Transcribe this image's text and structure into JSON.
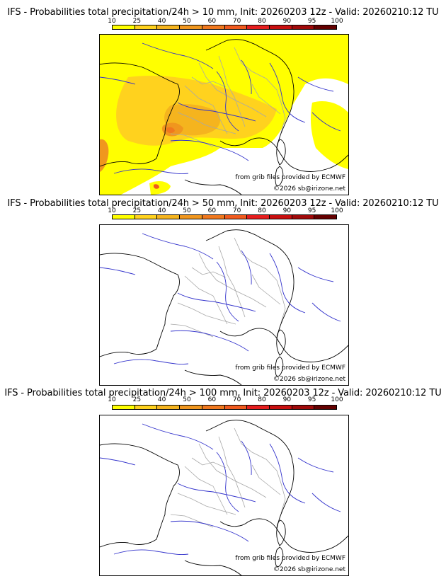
{
  "panels": [
    {
      "title": "IFS - Probabilities total precipitation/24h > 10 mm, Init: 20260203 12z - Valid: 20260210:12 TU",
      "has_field": true
    },
    {
      "title": "IFS - Probabilities total precipitation/24h > 50 mm, Init: 20260203 12z - Valid: 20260210:12 TU",
      "has_field": false
    },
    {
      "title": "IFS - Probabilities total precipitation/24h > 100 mm, Init: 20260203 12z - Valid: 20260210:12 TU",
      "has_field": false
    }
  ],
  "colorbar": {
    "levels": [
      "10",
      "25",
      "40",
      "50",
      "60",
      "70",
      "80",
      "90",
      "95",
      "100"
    ],
    "colors": [
      "#ffff00",
      "#ffd21e",
      "#f5b41e",
      "#f0961e",
      "#f0781e",
      "#f05a1e",
      "#e61e1e",
      "#c80f0f",
      "#a00a0a",
      "#640000"
    ]
  },
  "credits": {
    "source": "from grib files provided by ECMWF",
    "copyright": "©2026 sb@irizone.net"
  },
  "map_colors": {
    "coast": "#000000",
    "rivers": "#3333cc",
    "borders": "#a8a8a8"
  }
}
